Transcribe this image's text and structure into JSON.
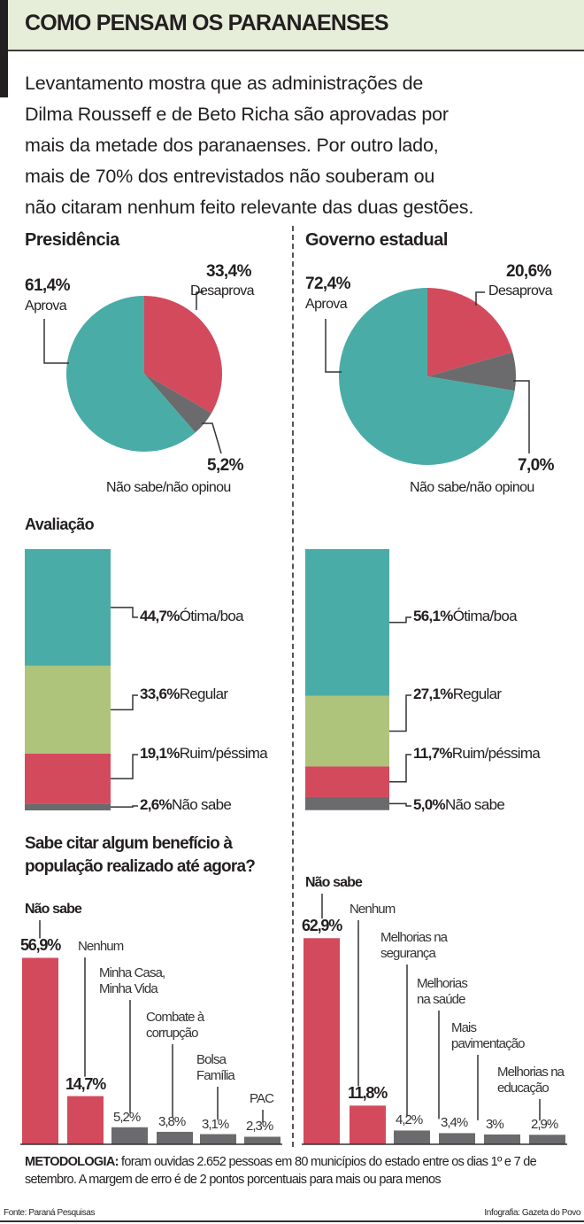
{
  "header": {
    "title": "COMO PENSAM OS PARANAENSES",
    "intro_lines": [
      "Levantamento mostra que as administrações de",
      "Dilma Rousseff e de Beto Richa são aprovadas por",
      "mais da metade dos paranaenses. Por outro lado,",
      "mais de 70% dos entrevistados não souberam ou",
      "não citaram nenhum feito relevante das duas gestões."
    ]
  },
  "colors": {
    "approve": "#4aaca7",
    "disapprove": "#d34a5d",
    "unknown": "#6b6b6d",
    "regular": "#afc47b",
    "band": "#e6edd9"
  },
  "chart_data": [
    {
      "type": "pie",
      "title": "Presidência",
      "slices": [
        {
          "label": "Desaprova",
          "value": 33.4,
          "text": "33,4%",
          "color": "#d34a5d"
        },
        {
          "label": "Não sabe/não opinou",
          "value": 5.2,
          "text": "5,2%",
          "color": "#6b6b6d"
        },
        {
          "label": "Aprova",
          "value": 61.4,
          "text": "61,4%",
          "color": "#4aaca7"
        }
      ]
    },
    {
      "type": "pie",
      "title": "Governo estadual",
      "slices": [
        {
          "label": "Desaprova",
          "value": 20.6,
          "text": "20,6%",
          "color": "#d34a5d"
        },
        {
          "label": "Não sabe/não opinou",
          "value": 7.0,
          "text": "7,0%",
          "color": "#6b6b6d"
        },
        {
          "label": "Aprova",
          "value": 72.4,
          "text": "72,4%",
          "color": "#4aaca7"
        }
      ]
    },
    {
      "type": "bar",
      "stacked": true,
      "title": "Avaliação",
      "series": [
        {
          "name": "Ótima/boa",
          "value": 44.7,
          "text": "44,7%",
          "color": "#4aaca7"
        },
        {
          "name": "Regular",
          "value": 33.6,
          "text": "33,6%",
          "color": "#afc47b"
        },
        {
          "name": "Ruim/péssima",
          "value": 19.1,
          "text": "19,1%",
          "color": "#d34a5d"
        },
        {
          "name": "Não sabe",
          "value": 2.6,
          "text": "2,6%",
          "color": "#6b6b6d"
        }
      ]
    },
    {
      "type": "bar",
      "stacked": true,
      "series": [
        {
          "name": "Ótima/boa",
          "value": 56.1,
          "text": "56,1%",
          "color": "#4aaca7"
        },
        {
          "name": "Regular",
          "value": 27.1,
          "text": "27,1%",
          "color": "#afc47b"
        },
        {
          "name": "Ruim/péssima",
          "value": 11.7,
          "text": "11,7%",
          "color": "#d34a5d"
        },
        {
          "name": "Não sabe",
          "value": 5.0,
          "text": "5,0%",
          "color": "#6b6b6d"
        }
      ]
    },
    {
      "type": "bar",
      "title": "Sabe citar algum benefício à população realizado até agora?",
      "title_lines": [
        "Sabe citar algum benefício à",
        "população realizado até agora?"
      ],
      "categories": [
        "Não sabe",
        "Nenhum",
        "Minha Casa,\nMinha Vida",
        "Combate à\ncorrupção",
        "Bolsa\nFamília",
        "PAC"
      ],
      "values": [
        56.9,
        14.7,
        5.2,
        3.8,
        3.1,
        2.3
      ],
      "texts": [
        "56,9%",
        "14,7%",
        "5,2%",
        "3,8%",
        "3,1%",
        "2,3%"
      ],
      "colors": [
        "#d34a5d",
        "#d34a5d",
        "#6b6b6d",
        "#6b6b6d",
        "#6b6b6d",
        "#6b6b6d"
      ]
    },
    {
      "type": "bar",
      "categories": [
        "Não sabe",
        "Nenhum",
        "Melhorias na\nsegurança",
        "Melhorias\nna saúde",
        "Mais\npavimentação",
        "Melhorias na\neducação"
      ],
      "values": [
        62.9,
        11.8,
        4.2,
        3.4,
        3.0,
        2.9
      ],
      "texts": [
        "62,9%",
        "11,8%",
        "4,2%",
        "3,4%",
        "3%",
        "2,9%"
      ],
      "colors": [
        "#d34a5d",
        "#d34a5d",
        "#6b6b6d",
        "#6b6b6d",
        "#6b6b6d",
        "#6b6b6d"
      ]
    }
  ],
  "footer": {
    "methodology_label": "METODOLOGIA:",
    "methodology_text": " foram ouvidas 2.652 pessoas em 80 municípios do estado entre os dias 1º e 7 de setembro. A margem de erro é de 2 pontos porcentuais para mais ou para menos",
    "source": "Fonte: Paraná Pesquisas",
    "credit": "Infografia: Gazeta do Povo"
  }
}
